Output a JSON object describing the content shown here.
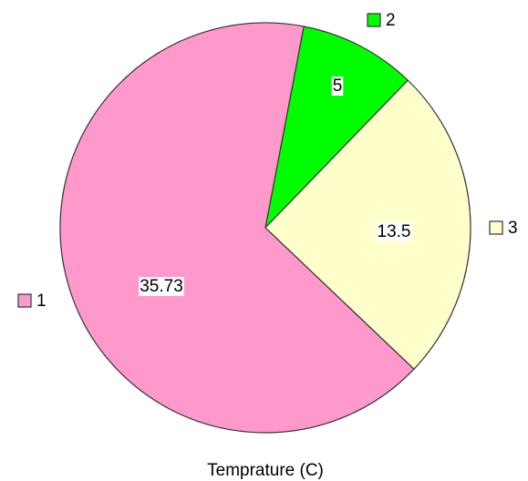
{
  "chart_data": {
    "type": "pie",
    "title": "Temprature (C)",
    "categories": [
      "1",
      "2",
      "3"
    ],
    "values": [
      35.73,
      5,
      13.5
    ],
    "colors": [
      "#ff99cc",
      "#00ff00",
      "#ffffcc"
    ]
  }
}
